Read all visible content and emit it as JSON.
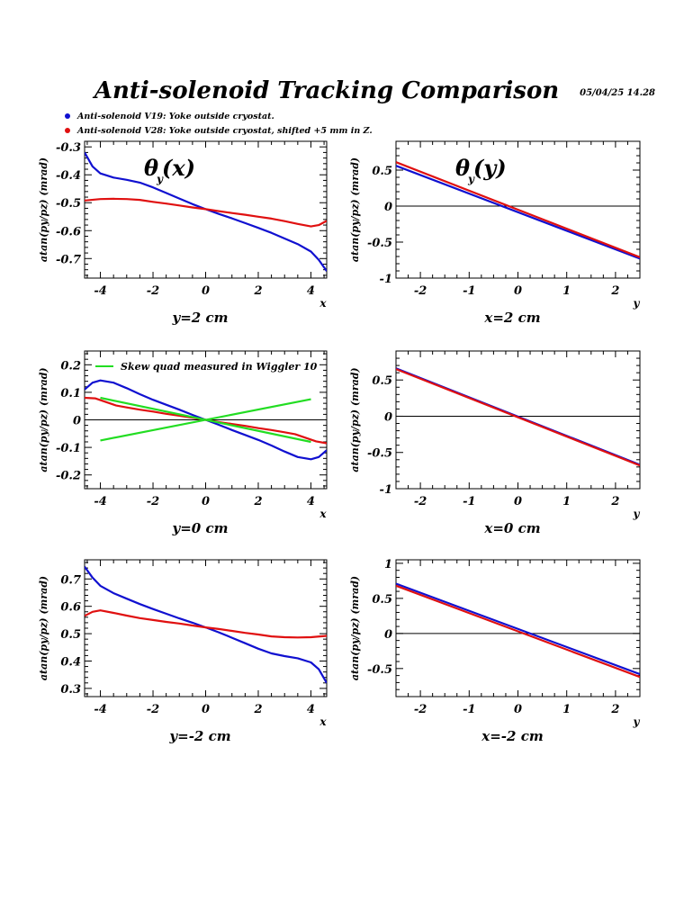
{
  "header": {
    "title": "Anti-solenoid Tracking Comparison",
    "datestamp": "05/04/25   14.28"
  },
  "legend": [
    {
      "label": "Anti-solenoid V19: Yoke outside cryostat.",
      "color": "#1010d0"
    },
    {
      "label": "Anti-solenoid V28: Yoke outside cryostat, shifted +5 mm in Z.",
      "color": "#e01010"
    }
  ],
  "colors": {
    "v19": "#1010d0",
    "v28": "#e01010",
    "skew": "#22dd22"
  },
  "chart_data": [
    {
      "type": "line",
      "id": "p1",
      "ylabel": "atan(py/pz) (mrad)",
      "xlabel": "x",
      "subtitle": "y=2 cm",
      "annotation": {
        "symbol": "θ",
        "sub": "y",
        "arg": " (x)"
      },
      "xlim": [
        -4.6,
        4.6
      ],
      "ylim": [
        -0.77,
        -0.28
      ],
      "xticks": [
        -4,
        -2,
        0,
        2,
        4
      ],
      "yticks": [
        -0.3,
        -0.4,
        -0.5,
        -0.6,
        -0.7
      ],
      "zero_line": false,
      "series": [
        {
          "color": "#1010d0",
          "points": [
            [
              -4.6,
              -0.32
            ],
            [
              -4.3,
              -0.37
            ],
            [
              -4.0,
              -0.395
            ],
            [
              -3.5,
              -0.41
            ],
            [
              -3.0,
              -0.418
            ],
            [
              -2.5,
              -0.428
            ],
            [
              -2.0,
              -0.445
            ],
            [
              -1.5,
              -0.465
            ],
            [
              -1.0,
              -0.485
            ],
            [
              -0.5,
              -0.505
            ],
            [
              0,
              -0.523
            ],
            [
              0.5,
              -0.54
            ],
            [
              1.0,
              -0.556
            ],
            [
              1.5,
              -0.573
            ],
            [
              2.0,
              -0.59
            ],
            [
              2.5,
              -0.608
            ],
            [
              3.0,
              -0.628
            ],
            [
              3.5,
              -0.648
            ],
            [
              4.0,
              -0.675
            ],
            [
              4.3,
              -0.705
            ],
            [
              4.6,
              -0.745
            ]
          ]
        },
        {
          "color": "#e01010",
          "points": [
            [
              -4.6,
              -0.492
            ],
            [
              -4.0,
              -0.487
            ],
            [
              -3.5,
              -0.486
            ],
            [
              -3.0,
              -0.487
            ],
            [
              -2.5,
              -0.49
            ],
            [
              -2.0,
              -0.497
            ],
            [
              -1.5,
              -0.503
            ],
            [
              -1.0,
              -0.51
            ],
            [
              -0.5,
              -0.517
            ],
            [
              0,
              -0.523
            ],
            [
              0.5,
              -0.53
            ],
            [
              1.0,
              -0.537
            ],
            [
              1.5,
              -0.543
            ],
            [
              2.0,
              -0.55
            ],
            [
              2.5,
              -0.557
            ],
            [
              3.0,
              -0.566
            ],
            [
              3.5,
              -0.576
            ],
            [
              4.0,
              -0.585
            ],
            [
              4.3,
              -0.58
            ],
            [
              4.6,
              -0.565
            ]
          ]
        }
      ]
    },
    {
      "type": "line",
      "id": "p2",
      "ylabel": "atan(py/pz) (mrad)",
      "xlabel": "y",
      "subtitle": "x=2 cm",
      "annotation": {
        "symbol": "θ",
        "sub": "y",
        "arg": " (y)"
      },
      "xlim": [
        -2.5,
        2.5
      ],
      "ylim": [
        -1.0,
        0.9
      ],
      "xticks": [
        -2,
        -1,
        0,
        1,
        2
      ],
      "yticks": [
        0.5,
        0,
        -0.5,
        -1
      ],
      "zero_line": true,
      "series": [
        {
          "color": "#1010d0",
          "points": [
            [
              -2.5,
              0.56
            ],
            [
              2.5,
              -0.73
            ]
          ]
        },
        {
          "color": "#e01010",
          "points": [
            [
              -2.5,
              0.61
            ],
            [
              2.5,
              -0.71
            ]
          ]
        }
      ]
    },
    {
      "type": "line",
      "id": "p3",
      "ylabel": "atan(py/pz) (mrad)",
      "xlabel": "x",
      "subtitle": "y=0 cm",
      "xlim": [
        -4.6,
        4.6
      ],
      "ylim": [
        -0.25,
        0.25
      ],
      "xticks": [
        -4,
        -2,
        0,
        2,
        4
      ],
      "yticks": [
        0.2,
        0.1,
        0,
        -0.1,
        -0.2
      ],
      "zero_line": true,
      "inner_legend": {
        "label": "Skew quad measured in Wiggler 10",
        "color": "#22dd22"
      },
      "series": [
        {
          "color": "#1010d0",
          "points": [
            [
              -4.6,
              0.11
            ],
            [
              -4.3,
              0.135
            ],
            [
              -4.0,
              0.143
            ],
            [
              -3.5,
              0.135
            ],
            [
              -3.0,
              0.115
            ],
            [
              -2.5,
              0.093
            ],
            [
              -2.0,
              0.073
            ],
            [
              -1.5,
              0.055
            ],
            [
              -1.0,
              0.037
            ],
            [
              -0.5,
              0.018
            ],
            [
              0,
              0.0
            ],
            [
              0.5,
              -0.018
            ],
            [
              1.0,
              -0.037
            ],
            [
              1.5,
              -0.055
            ],
            [
              2.0,
              -0.073
            ],
            [
              2.5,
              -0.093
            ],
            [
              3.0,
              -0.115
            ],
            [
              3.5,
              -0.135
            ],
            [
              4.0,
              -0.143
            ],
            [
              4.3,
              -0.135
            ],
            [
              4.6,
              -0.11
            ]
          ]
        },
        {
          "color": "#e01010",
          "points": [
            [
              -4.6,
              0.08
            ],
            [
              -4.2,
              0.078
            ],
            [
              -3.8,
              0.065
            ],
            [
              -3.4,
              0.052
            ],
            [
              -3.0,
              0.045
            ],
            [
              -2.5,
              0.037
            ],
            [
              -2.0,
              0.03
            ],
            [
              -1.5,
              0.022
            ],
            [
              -1.0,
              0.015
            ],
            [
              -0.5,
              0.008
            ],
            [
              0,
              0.0
            ],
            [
              0.5,
              -0.008
            ],
            [
              1.0,
              -0.015
            ],
            [
              1.5,
              -0.022
            ],
            [
              2.0,
              -0.03
            ],
            [
              2.5,
              -0.037
            ],
            [
              3.0,
              -0.045
            ],
            [
              3.4,
              -0.052
            ],
            [
              3.8,
              -0.065
            ],
            [
              4.2,
              -0.078
            ],
            [
              4.6,
              -0.085
            ]
          ]
        },
        {
          "color": "#22dd22",
          "points": [
            [
              -4.0,
              0.08
            ],
            [
              4.0,
              -0.08
            ]
          ]
        },
        {
          "color": "#22dd22",
          "points": [
            [
              -4.0,
              -0.075
            ],
            [
              4.0,
              0.075
            ]
          ]
        }
      ]
    },
    {
      "type": "line",
      "id": "p4",
      "ylabel": "atan(py/pz) (mrad)",
      "xlabel": "y",
      "subtitle": "x=0 cm",
      "xlim": [
        -2.5,
        2.5
      ],
      "ylim": [
        -1.0,
        0.9
      ],
      "xticks": [
        -2,
        -1,
        0,
        1,
        2
      ],
      "yticks": [
        0.5,
        0,
        -0.5,
        -1
      ],
      "zero_line": true,
      "series": [
        {
          "color": "#1010d0",
          "points": [
            [
              -2.5,
              0.66
            ],
            [
              2.5,
              -0.67
            ]
          ]
        },
        {
          "color": "#e01010",
          "points": [
            [
              -2.5,
              0.65
            ],
            [
              2.5,
              -0.68
            ]
          ]
        }
      ]
    },
    {
      "type": "line",
      "id": "p5",
      "ylabel": "atan(py/pz) (mrad)",
      "xlabel": "x",
      "subtitle": "y=-2 cm",
      "xlim": [
        -4.6,
        4.6
      ],
      "ylim": [
        0.27,
        0.77
      ],
      "xticks": [
        -4,
        -2,
        0,
        2,
        4
      ],
      "yticks": [
        0.7,
        0.6,
        0.5,
        0.4,
        0.3
      ],
      "zero_line": false,
      "series": [
        {
          "color": "#1010d0",
          "points": [
            [
              -4.6,
              0.745
            ],
            [
              -4.3,
              0.705
            ],
            [
              -4.0,
              0.675
            ],
            [
              -3.5,
              0.648
            ],
            [
              -3.0,
              0.628
            ],
            [
              -2.5,
              0.608
            ],
            [
              -2.0,
              0.59
            ],
            [
              -1.5,
              0.573
            ],
            [
              -1.0,
              0.556
            ],
            [
              -0.5,
              0.54
            ],
            [
              0,
              0.523
            ],
            [
              0.5,
              0.505
            ],
            [
              1.0,
              0.485
            ],
            [
              1.5,
              0.465
            ],
            [
              2.0,
              0.445
            ],
            [
              2.5,
              0.428
            ],
            [
              3.0,
              0.418
            ],
            [
              3.5,
              0.41
            ],
            [
              4.0,
              0.395
            ],
            [
              4.3,
              0.37
            ],
            [
              4.6,
              0.32
            ]
          ]
        },
        {
          "color": "#e01010",
          "points": [
            [
              -4.6,
              0.565
            ],
            [
              -4.3,
              0.58
            ],
            [
              -4.0,
              0.585
            ],
            [
              -3.5,
              0.576
            ],
            [
              -3.0,
              0.566
            ],
            [
              -2.5,
              0.557
            ],
            [
              -2.0,
              0.55
            ],
            [
              -1.5,
              0.543
            ],
            [
              -1.0,
              0.537
            ],
            [
              -0.5,
              0.53
            ],
            [
              0,
              0.523
            ],
            [
              0.5,
              0.517
            ],
            [
              1.0,
              0.51
            ],
            [
              1.5,
              0.503
            ],
            [
              2.0,
              0.497
            ],
            [
              2.5,
              0.49
            ],
            [
              3.0,
              0.487
            ],
            [
              3.5,
              0.486
            ],
            [
              4.0,
              0.487
            ],
            [
              4.6,
              0.492
            ]
          ]
        }
      ]
    },
    {
      "type": "line",
      "id": "p6",
      "ylabel": "atan(py/pz) (mrad)",
      "xlabel": "y",
      "subtitle": "x=-2 cm",
      "xlim": [
        -2.5,
        2.5
      ],
      "ylim": [
        -0.9,
        1.05
      ],
      "xticks": [
        -2,
        -1,
        0,
        1,
        2
      ],
      "yticks": [
        1,
        0.5,
        0,
        -0.5
      ],
      "zero_line": true,
      "series": [
        {
          "color": "#1010d0",
          "points": [
            [
              -2.5,
              0.71
            ],
            [
              2.5,
              -0.58
            ]
          ]
        },
        {
          "color": "#e01010",
          "points": [
            [
              -2.5,
              0.68
            ],
            [
              2.5,
              -0.62
            ]
          ]
        }
      ]
    }
  ]
}
